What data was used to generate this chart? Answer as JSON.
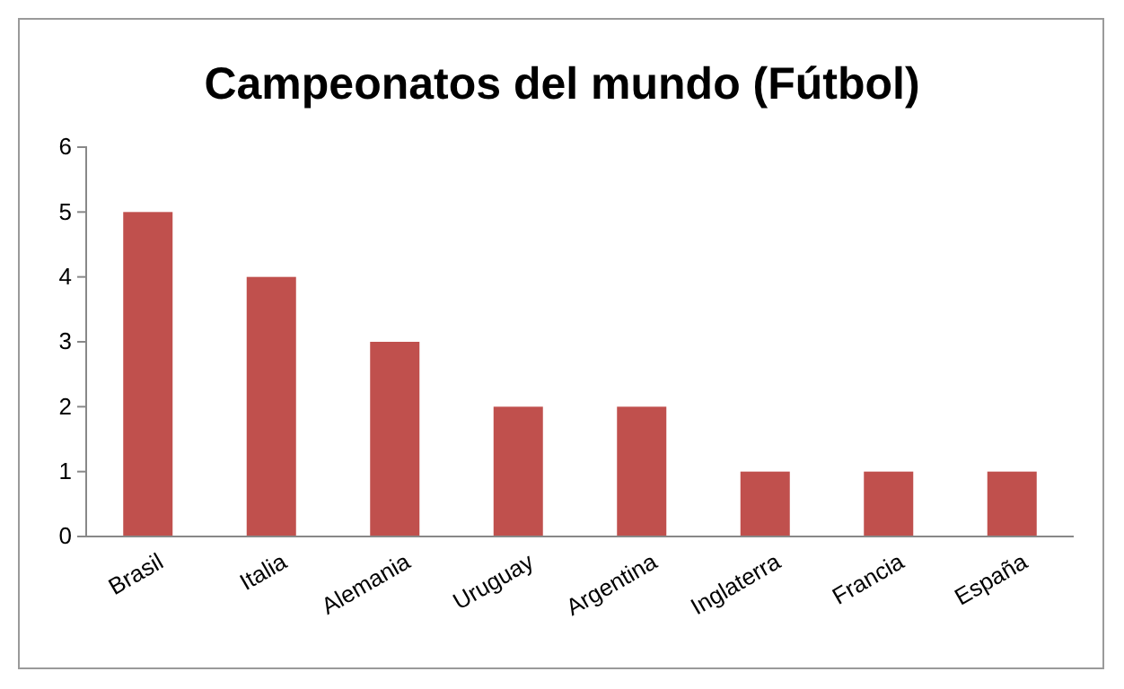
{
  "chart_data": {
    "type": "bar",
    "title": "Campeonatos del mundo (Fútbol)",
    "categories": [
      "Brasil",
      "Italia",
      "Alemania",
      "Uruguay",
      "Argentina",
      "Inglaterra",
      "Francia",
      "España"
    ],
    "values": [
      5,
      4,
      3,
      2,
      2,
      1,
      1,
      1
    ],
    "color": "#c0504d",
    "ylim": [
      0,
      6
    ],
    "yticks": [
      0,
      1,
      2,
      3,
      4,
      5,
      6
    ],
    "grid": false
  }
}
